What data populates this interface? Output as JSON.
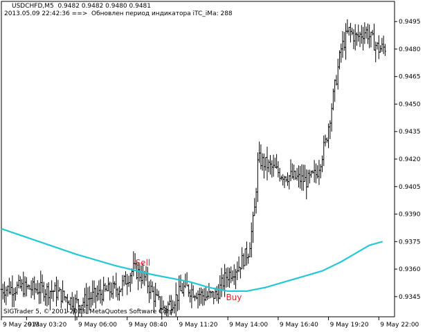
{
  "header": {
    "symbol_line": "USDCHFD,M5  0.9482 0.9482 0.9480 0.9481",
    "status_line": "2013.05.09 22:42:36 ==>  Обновлен период индикатора iTC_iMa: 288"
  },
  "footer": {
    "copyright": "SIGTrader 5, © 2001-2013, MetaQuotes Software Corp."
  },
  "colors": {
    "background": "#ffffff",
    "bars": "#000000",
    "moving_average": "#22c8d4",
    "signal_text": "#e8202a"
  },
  "chart_data": {
    "type": "line",
    "ylim": [
      0.9334,
      0.9506
    ],
    "yticks": [
      "0.9495",
      "0.9480",
      "0.9465",
      "0.9450",
      "0.9435",
      "0.9420",
      "0.9405",
      "0.9390",
      "0.9375",
      "0.9360",
      "0.9345"
    ],
    "ytick_values": [
      0.9495,
      0.948,
      0.9465,
      0.945,
      0.9435,
      0.942,
      0.9405,
      0.939,
      0.9375,
      0.936,
      0.9345
    ],
    "x_range_hours": [
      2.0,
      22.833
    ],
    "xticks": [
      {
        "label": "9 May 2013",
        "hour": 2.0
      },
      {
        "label": "9 May 03:20",
        "hour": 3.333
      },
      {
        "label": "9 May 06:00",
        "hour": 6.0
      },
      {
        "label": "9 May 08:40",
        "hour": 8.667
      },
      {
        "label": "9 May 11:20",
        "hour": 11.333
      },
      {
        "label": "9 May 14:00",
        "hour": 14.0
      },
      {
        "label": "9 May 16:40",
        "hour": 16.667
      },
      {
        "label": "9 May 19:20",
        "hour": 19.333
      },
      {
        "label": "9 May 22:00",
        "hour": 22.0
      }
    ],
    "price_path": [
      [
        2.0,
        0.9349
      ],
      [
        3.0,
        0.935
      ],
      [
        4.0,
        0.9349
      ],
      [
        4.8,
        0.9348
      ],
      [
        5.3,
        0.9345
      ],
      [
        6.1,
        0.9341
      ],
      [
        6.8,
        0.9345
      ],
      [
        7.6,
        0.9348
      ],
      [
        8.3,
        0.935
      ],
      [
        9.0,
        0.936
      ],
      [
        9.6,
        0.9355
      ],
      [
        10.1,
        0.9345
      ],
      [
        10.6,
        0.9338
      ],
      [
        11.2,
        0.9344
      ],
      [
        11.7,
        0.935
      ],
      [
        12.2,
        0.9348
      ],
      [
        12.8,
        0.9345
      ],
      [
        13.4,
        0.9346
      ],
      [
        13.9,
        0.9356
      ],
      [
        14.6,
        0.9362
      ],
      [
        15.1,
        0.937
      ],
      [
        15.4,
        0.939
      ],
      [
        15.6,
        0.942
      ],
      [
        16.2,
        0.9416
      ],
      [
        16.8,
        0.9412
      ],
      [
        17.5,
        0.941
      ],
      [
        18.2,
        0.9408
      ],
      [
        18.7,
        0.9412
      ],
      [
        19.2,
        0.943
      ],
      [
        19.6,
        0.9455
      ],
      [
        20.0,
        0.948
      ],
      [
        20.4,
        0.949
      ],
      [
        20.8,
        0.9486
      ],
      [
        21.3,
        0.949
      ],
      [
        21.7,
        0.9484
      ],
      [
        22.0,
        0.948
      ],
      [
        22.35,
        0.9481
      ]
    ],
    "series": [
      {
        "values": [
          [
            2.0,
            0.9382
          ],
          [
            4.0,
            0.9375
          ],
          [
            6.0,
            0.9368
          ],
          [
            8.0,
            0.9362
          ],
          [
            10.0,
            0.9357
          ],
          [
            12.0,
            0.9353
          ],
          [
            13.0,
            0.935
          ],
          [
            14.0,
            0.9348
          ],
          [
            15.0,
            0.9348
          ],
          [
            16.0,
            0.935
          ],
          [
            17.0,
            0.9353
          ],
          [
            18.0,
            0.9356
          ],
          [
            19.0,
            0.9359
          ],
          [
            20.0,
            0.9364
          ],
          [
            21.0,
            0.937
          ],
          [
            21.5,
            0.9373
          ],
          [
            22.2,
            0.9375
          ]
        ]
      }
    ],
    "annotations": [
      {
        "text": "Sell",
        "hour": 9.1,
        "price": 0.9362
      },
      {
        "text": "Buy",
        "hour": 13.9,
        "price": 0.9343
      }
    ],
    "grid": false,
    "legend": "none"
  }
}
